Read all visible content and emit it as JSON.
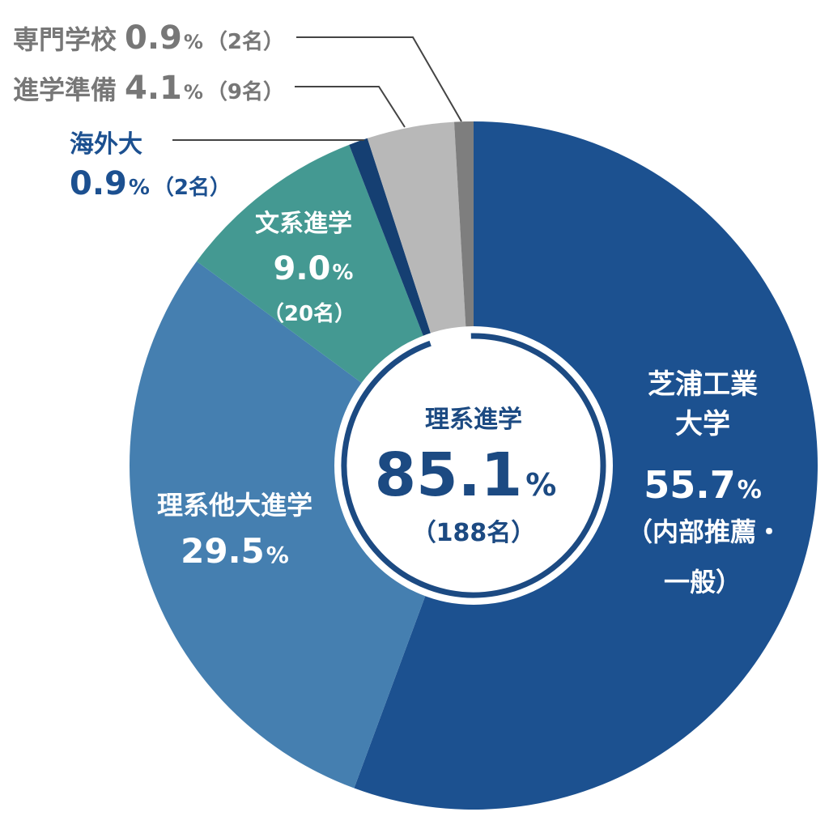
{
  "chart_data": {
    "type": "pie",
    "style": "donut",
    "series": [
      {
        "name": "芝浦工業大学",
        "value": 55.7,
        "color": "#1c5190"
      },
      {
        "name": "理系他大進学",
        "value": 29.5,
        "color": "#457fb0"
      },
      {
        "name": "文系進学",
        "value": 9.0,
        "color": "#449992"
      },
      {
        "name": "海外大",
        "value": 0.9,
        "color": "#153f72"
      },
      {
        "name": "進学準備",
        "value": 4.1,
        "color": "#b8b8b8"
      },
      {
        "name": "専門学校",
        "value": 0.9,
        "color": "#7e7e7e"
      }
    ],
    "center": {
      "label": "理系進学",
      "value": "85.1",
      "unit": "%",
      "count": "（188名）",
      "ring_color": "#1c4a82"
    }
  },
  "labels": {
    "shibaura": {
      "line1": "芝浦工業",
      "line2": "大学",
      "value": "55.7",
      "unit": "%",
      "note1": "（内部推薦・",
      "note2": "一般）"
    },
    "other_science": {
      "line1": "理系他大進学",
      "value": "29.5",
      "unit": "%"
    },
    "humanities": {
      "line1": "文系進学",
      "value": "9.0",
      "unit": "%",
      "count": "（20名）"
    },
    "overseas": {
      "line1": "海外大",
      "value": "0.9",
      "unit": "%",
      "count": "（2名）"
    },
    "prep": {
      "line1": "進学準備",
      "value": "4.1",
      "unit": "%",
      "count": "（9名）"
    },
    "vocational": {
      "line1": "専門学校",
      "value": "0.9",
      "unit": "%",
      "count": "（2名）"
    }
  }
}
